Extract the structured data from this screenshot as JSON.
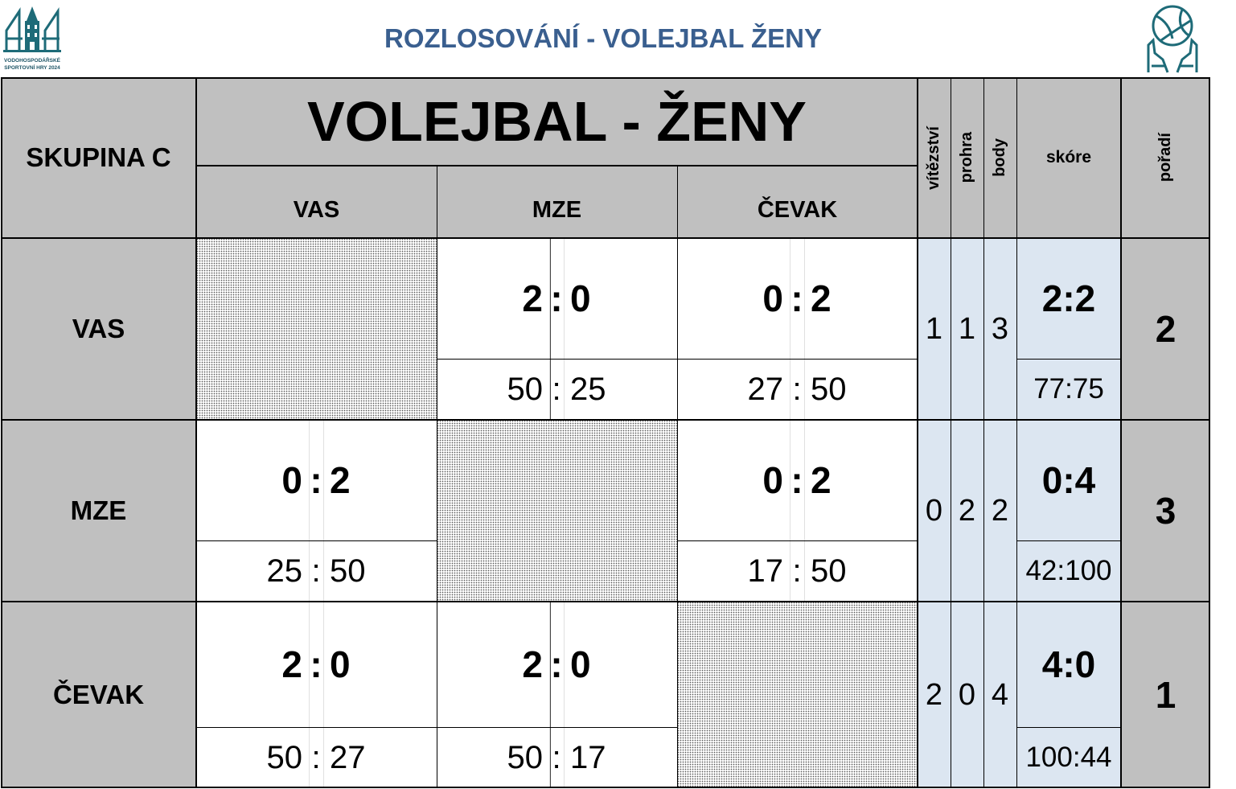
{
  "header": {
    "title": "ROZLOSOVÁNÍ - VOLEJBAL ŽENY",
    "logo_left_caption_1": "VODOHOSPODÁŘSKÉ",
    "logo_left_caption_2": "SPORTOVNÍ HRY 2024",
    "logo_left_icon": "tower-44-logo-icon",
    "logo_right_icon": "volleyball-hands-icon"
  },
  "table": {
    "group_label": "SKUPINA C",
    "main_title": "VOLEJBAL - ŽENY",
    "col_teams": [
      "VAS",
      "MZE",
      "ČEVAK"
    ],
    "stat_headers": {
      "wins": "vítězství",
      "losses": "prohra",
      "points": "body",
      "score": "skóre",
      "rank": "pořadí"
    },
    "rows": [
      {
        "team": "VAS",
        "matches": [
          null,
          {
            "sets_a": "2",
            "sets_b": "0",
            "pts_a": "50",
            "pts_b": "25"
          },
          {
            "sets_a": "0",
            "sets_b": "2",
            "pts_a": "27",
            "pts_b": "50"
          }
        ],
        "wins": "1",
        "losses": "1",
        "points": "3",
        "score_sets": "2:2",
        "score_points": "77:75",
        "rank": "2"
      },
      {
        "team": "MZE",
        "matches": [
          {
            "sets_a": "0",
            "sets_b": "2",
            "pts_a": "25",
            "pts_b": "50"
          },
          null,
          {
            "sets_a": "0",
            "sets_b": "2",
            "pts_a": "17",
            "pts_b": "50"
          }
        ],
        "wins": "0",
        "losses": "2",
        "points": "2",
        "score_sets": "0:4",
        "score_points": "42:100",
        "rank": "3"
      },
      {
        "team": "ČEVAK",
        "matches": [
          {
            "sets_a": "2",
            "sets_b": "0",
            "pts_a": "50",
            "pts_b": "27"
          },
          {
            "sets_a": "2",
            "sets_b": "0",
            "pts_a": "50",
            "pts_b": "17"
          },
          null
        ],
        "wins": "2",
        "losses": "0",
        "points": "4",
        "score_sets": "4:0",
        "score_points": "100:44",
        "rank": "1"
      }
    ],
    "colors": {
      "header_gray": "#c0c0c0",
      "stats_blue": "#dce6f1",
      "title_blue": "#3a5f8f",
      "logo_teal": "#1e6b78"
    }
  }
}
